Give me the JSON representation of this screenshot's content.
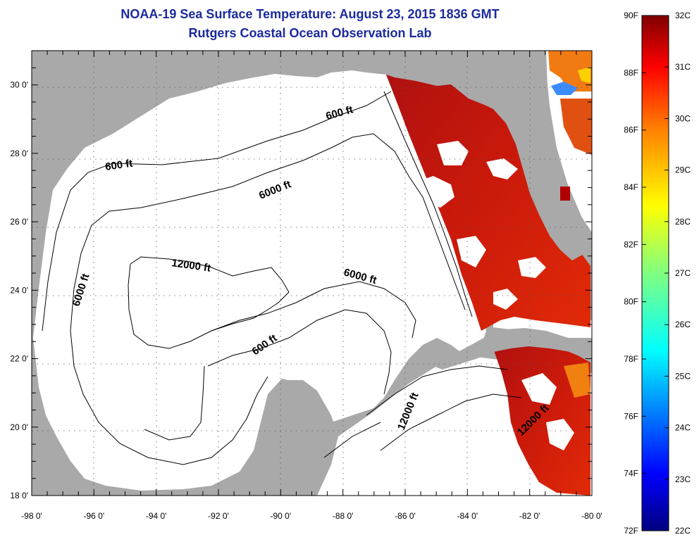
{
  "title_line1": "NOAA-19 Sea Surface Temperature:  August 23, 2015 1836 GMT",
  "title_line2": "Rutgers Coastal Ocean Observation Lab",
  "map": {
    "lon_range": [
      -98,
      -80
    ],
    "lat_range": [
      18,
      31
    ],
    "lon_ticks": [
      "-98 0'",
      "-96 0'",
      "-94 0'",
      "-92 0'",
      "-90 0'",
      "-88 0'",
      "-86 0'",
      "-84 0'",
      "-82 0'",
      "-80 0'"
    ],
    "lat_ticks": [
      "30 0'",
      "28 0'",
      "26 0'",
      "24 0'",
      "22 0'",
      "20 0'",
      "18 0'"
    ],
    "land_color": "#a9a9a9",
    "ocean_nodata_color": "#ffffff",
    "contour_labels": [
      {
        "text": "600 ft"
      },
      {
        "text": "600 ft"
      },
      {
        "text": "6000 ft"
      },
      {
        "text": "6000 ft"
      },
      {
        "text": "12000 ft"
      },
      {
        "text": "6000 ft"
      },
      {
        "text": "600 ft"
      },
      {
        "text": "12000 ft"
      },
      {
        "text": "12000 ft"
      }
    ]
  },
  "colorbar": {
    "fahrenheit_labels": [
      "90F",
      "88F",
      "86F",
      "84F",
      "82F",
      "80F",
      "78F",
      "76F",
      "74F",
      "72F"
    ],
    "celsius_labels": [
      "32C",
      "31C",
      "30C",
      "29C",
      "28C",
      "27C",
      "26C",
      "25C",
      "24C",
      "23C",
      "22C"
    ],
    "range_F": [
      72,
      90
    ],
    "range_C": [
      22,
      32
    ],
    "colormap": "jet",
    "colors": {
      "top": "#7f0000",
      "red": "#ff0000",
      "orange": "#ff8000",
      "yellow": "#ffff00",
      "green": "#80ff80",
      "cyan": "#00ffff",
      "blue": "#0000ff",
      "bottom": "#00007f"
    }
  }
}
